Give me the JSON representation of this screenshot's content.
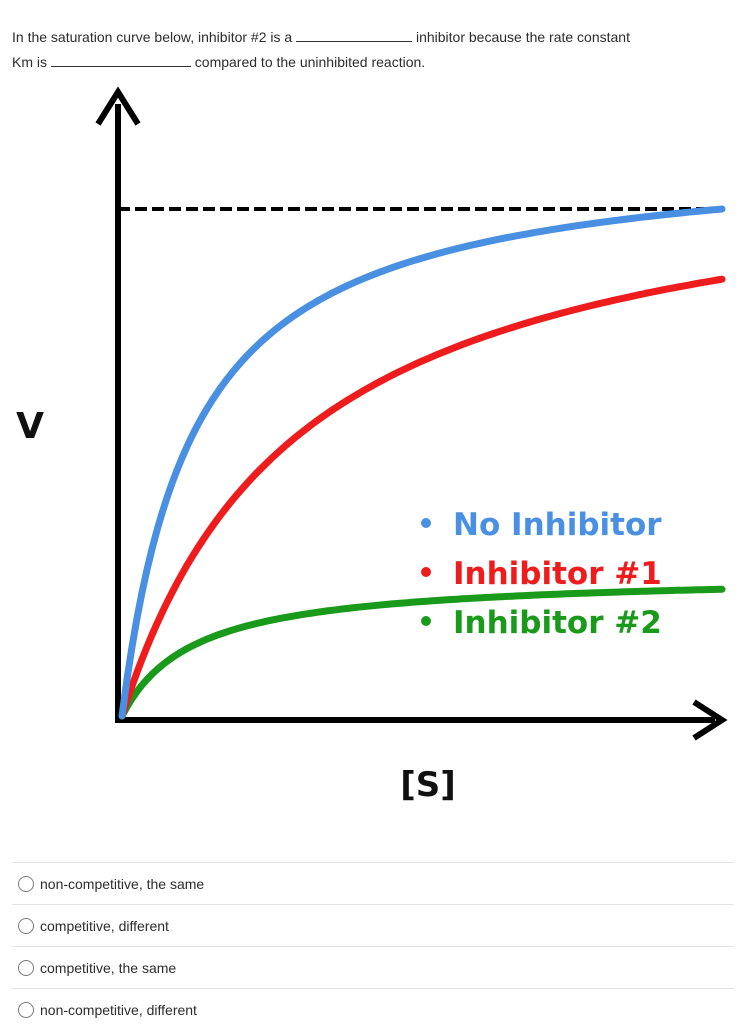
{
  "question": {
    "part1": "In the saturation curve below, inhibitor #2 is a ",
    "part2": " inhibitor because the rate constant",
    "part3": "Km is ",
    "part4": " compared to the uninhibited reaction."
  },
  "chart_data": {
    "type": "line",
    "xlabel": "[S]",
    "ylabel": "V",
    "series": [
      {
        "name": "No Inhibitor",
        "color": "#4a90e2",
        "vmax": 1.0,
        "km": 0.12
      },
      {
        "name": "Inhibitor #1",
        "color": "#ee1c1c",
        "vmax": 1.0,
        "km": 0.3
      },
      {
        "name": "Inhibitor #2",
        "color": "#1a9a1a",
        "vmax": 0.5,
        "km": 0.12
      }
    ],
    "vmax_line": 1.0,
    "legend": "center-right"
  },
  "options": [
    {
      "label": "non-competitive, the same"
    },
    {
      "label": "competitive, different"
    },
    {
      "label": "competitive, the same"
    },
    {
      "label": "non-competitive, different"
    }
  ]
}
